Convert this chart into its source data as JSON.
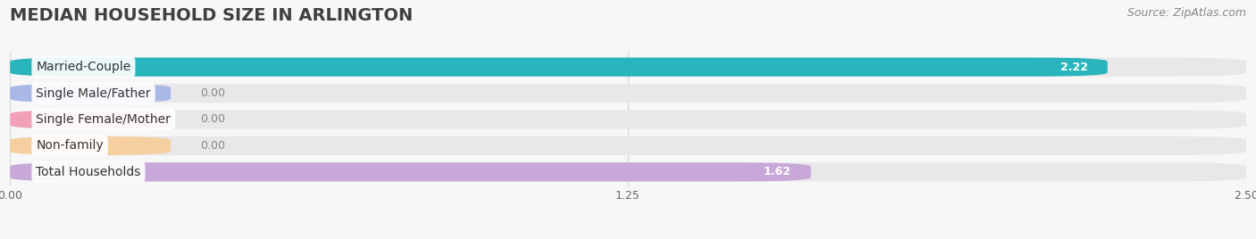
{
  "title": "MEDIAN HOUSEHOLD SIZE IN ARLINGTON",
  "source": "Source: ZipAtlas.com",
  "categories": [
    "Married-Couple",
    "Single Male/Father",
    "Single Female/Mother",
    "Non-family",
    "Total Households"
  ],
  "values": [
    2.22,
    0.0,
    0.0,
    0.0,
    1.62
  ],
  "bar_colors": [
    "#2ab5bd",
    "#aab8e8",
    "#f2a0b8",
    "#f5cfa0",
    "#c8a8d8"
  ],
  "bar_bg_color": "#e8e8ea",
  "xlim": [
    0,
    2.5
  ],
  "xticks": [
    0.0,
    1.25,
    2.5
  ],
  "xtick_labels": [
    "0.00",
    "1.25",
    "2.50"
  ],
  "title_fontsize": 14,
  "source_fontsize": 9,
  "bar_height": 0.72,
  "bar_gap": 0.28,
  "background_color": "#f7f7f7",
  "grid_color": "#d8d8d8",
  "value_label_color_inside": "#ffffff",
  "value_label_color_outside": "#888888",
  "cat_label_fontsize": 10,
  "val_label_fontsize": 9
}
